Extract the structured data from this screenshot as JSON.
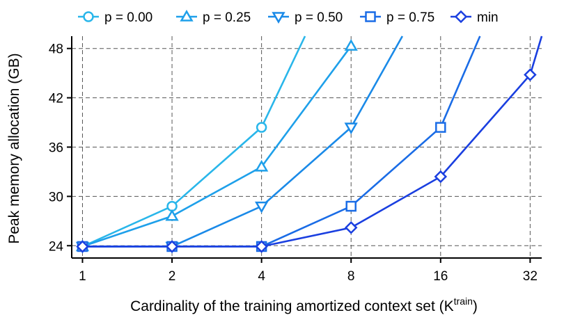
{
  "chart_data": {
    "type": "line",
    "title": "",
    "xlabel": "Cardinality of the training amortized context set (K",
    "xlabel_sup": "train",
    "xlabel_end": ")",
    "ylabel": "Peak memory allocation (GB)",
    "x_scale": "log2",
    "x": [
      1,
      2,
      4,
      8,
      16,
      32
    ],
    "x_tick_labels": [
      "1",
      "2",
      "4",
      "8",
      "16",
      "32"
    ],
    "y_ticks": [
      24,
      30,
      36,
      42,
      48
    ],
    "y_tick_labels": [
      "24",
      "30",
      "36",
      42,
      "48"
    ],
    "ylim": [
      22.5,
      49.5
    ],
    "grid": true,
    "legend_position": "top",
    "series": [
      {
        "name": "p = 0.00",
        "marker": "circle",
        "color": "#29b6ea",
        "points": [
          [
            1,
            23.9
          ],
          [
            2,
            28.8
          ],
          [
            4,
            38.4
          ],
          [
            5.6,
            49.5
          ]
        ]
      },
      {
        "name": "p = 0.25",
        "marker": "triangle-up",
        "color": "#1ea0ea",
        "points": [
          [
            1,
            23.9
          ],
          [
            2,
            27.6
          ],
          [
            4,
            33.6
          ],
          [
            8,
            48.3
          ]
        ]
      },
      {
        "name": "p = 0.50",
        "marker": "triangle-down",
        "color": "#1a8ae8",
        "points": [
          [
            1,
            23.9
          ],
          [
            2,
            23.9
          ],
          [
            4,
            28.8
          ],
          [
            8,
            38.4
          ],
          [
            11.9,
            49.5
          ]
        ]
      },
      {
        "name": "p = 0.75",
        "marker": "square",
        "color": "#1a6ce6",
        "points": [
          [
            1,
            23.9
          ],
          [
            2,
            23.9
          ],
          [
            4,
            23.9
          ],
          [
            8,
            28.8
          ],
          [
            16,
            38.4
          ],
          [
            21.7,
            49.5
          ]
        ]
      },
      {
        "name": "min",
        "marker": "diamond",
        "color": "#1a3fe0",
        "points": [
          [
            1,
            23.9
          ],
          [
            2,
            23.9
          ],
          [
            4,
            23.9
          ],
          [
            8,
            26.2
          ],
          [
            16,
            32.4
          ],
          [
            32,
            44.8
          ],
          [
            35,
            49.5
          ]
        ]
      }
    ]
  }
}
